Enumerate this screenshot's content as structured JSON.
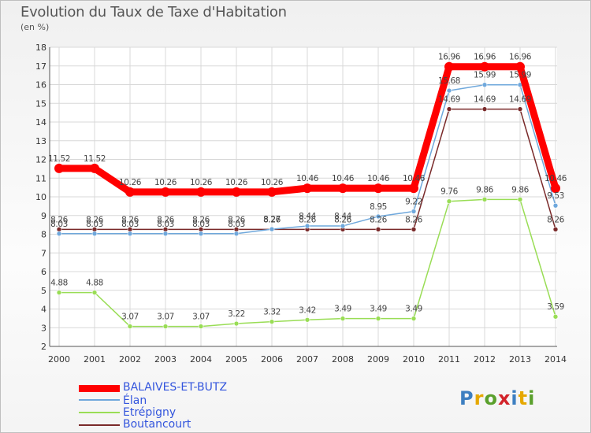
{
  "title": "Evolution du Taux de Taxe d'Habitation",
  "unit": "(en %)",
  "logo": "Proxiti",
  "chart_data": {
    "type": "line",
    "title": "Evolution du Taux de Taxe d'Habitation",
    "ylabel": "(en %)",
    "ylim": [
      2,
      18
    ],
    "yticks": [
      2,
      3,
      4,
      5,
      6,
      7,
      8,
      9,
      10,
      11,
      12,
      13,
      14,
      15,
      16,
      17,
      18
    ],
    "x": [
      "2000",
      "2001",
      "2002",
      "2003",
      "2004",
      "2005",
      "2006",
      "2007",
      "2008",
      "2009",
      "2010",
      "2011",
      "2012",
      "2013",
      "2014"
    ],
    "series": [
      {
        "name": "BALAIVES-ET-BUTZ",
        "color": "#ff0000",
        "values": [
          11.52,
          11.52,
          10.26,
          10.26,
          10.26,
          10.26,
          10.26,
          10.46,
          10.46,
          10.46,
          10.46,
          16.96,
          16.96,
          16.96,
          10.46
        ],
        "labels": [
          "11.52",
          "11.52",
          "10.26",
          "10.26",
          "10.26",
          "10.26",
          "10.26",
          "10.46",
          "10.46",
          "10.46",
          "10.46",
          "16.96",
          "16.96",
          "16.96",
          "10.46"
        ]
      },
      {
        "name": "Élan",
        "color": "#6fa8dc",
        "values": [
          8.03,
          8.03,
          8.03,
          8.03,
          8.03,
          8.03,
          8.27,
          8.44,
          8.44,
          8.95,
          9.22,
          15.68,
          15.99,
          15.99,
          9.53
        ],
        "labels": [
          "8.03",
          "8.03",
          "8.03",
          "8.03",
          "8.03",
          "8.03",
          "8.27",
          "8.44",
          "8.44",
          "8.95",
          "9.22",
          "15.68",
          "15.99",
          "15.99",
          "9.53"
        ]
      },
      {
        "name": "Etrépigny",
        "color": "#99dd55",
        "values": [
          4.88,
          4.88,
          3.07,
          3.07,
          3.07,
          3.22,
          3.32,
          3.42,
          3.49,
          3.49,
          3.49,
          9.76,
          9.86,
          9.86,
          3.59
        ],
        "labels": [
          "4.88",
          "4.88",
          "3.07",
          "3.07",
          "3.07",
          "3.22",
          "3.32",
          "3.42",
          "3.49",
          "3.49",
          "3.49",
          "9.76",
          "9.86",
          "9.86",
          "3.59"
        ]
      },
      {
        "name": "Boutancourt",
        "color": "#7a2a2a",
        "values": [
          8.26,
          8.26,
          8.26,
          8.26,
          8.26,
          8.26,
          8.26,
          8.26,
          8.26,
          8.26,
          8.26,
          14.69,
          14.69,
          14.69,
          8.26
        ],
        "labels": [
          "8.26",
          "8.26",
          "8.26",
          "8.26",
          "8.26",
          "8.26",
          "8.26",
          "8.26",
          "8.26",
          "8.26",
          "8.26",
          "14.69",
          "14.69",
          "14.69",
          "8.26"
        ]
      }
    ],
    "legend": [
      "BALAIVES-ET-BUTZ",
      "Élan",
      "Etrépigny",
      "Boutancourt"
    ]
  }
}
